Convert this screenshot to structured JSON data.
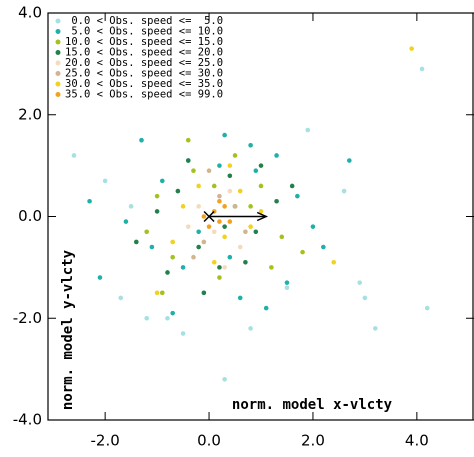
{
  "chart_data": {
    "type": "scatter",
    "x_label": "norm. model x-vlcty",
    "y_label": "norm. model y-vlcty",
    "xlim": [
      -3.1,
      5.1
    ],
    "ylim": [
      -4,
      4
    ],
    "xticks": [
      {
        "value": -2,
        "label": "-2.0"
      },
      {
        "value": 0,
        "label": "0.0"
      },
      {
        "value": 2,
        "label": "2.0"
      },
      {
        "value": 4,
        "label": "4.0"
      }
    ],
    "yticks": [
      {
        "value": -4,
        "label": "-4.0"
      },
      {
        "value": -2,
        "label": "-2.0"
      },
      {
        "value": 0,
        "label": "0.0"
      },
      {
        "value": 2,
        "label": "2.0"
      },
      {
        "value": 4,
        "label": "4.0"
      }
    ],
    "grid": false,
    "legend_position": "upper left",
    "arrow": {
      "x": 1.1,
      "y": 0
    },
    "series": [
      {
        "name": " 0.0 < Obs. speed <=  5.0",
        "color": "#a6e0e0",
        "x": [
          -2.6,
          4.1,
          -1.7,
          -0.8,
          2.6,
          3.2,
          4.2,
          -1.2,
          0.8,
          1.5,
          -2.0,
          0.3,
          3.0,
          -0.5,
          1.9,
          2.9,
          -1.5
        ],
        "y": [
          1.2,
          2.9,
          -1.6,
          -2.0,
          0.5,
          -2.2,
          -1.8,
          -2.0,
          -2.2,
          -1.4,
          0.7,
          -3.2,
          -1.6,
          -2.3,
          1.7,
          -1.3,
          0.2
        ]
      },
      {
        "name": " 5.0 < Obs. speed <= 10.0",
        "color": "#1fb0aa",
        "x": [
          -2.3,
          -2.1,
          -1.3,
          -0.9,
          -0.4,
          0.3,
          0.8,
          1.3,
          1.7,
          2.2,
          -0.5,
          0.6,
          1.1,
          -1.1,
          0.9,
          -0.2,
          1.5,
          2.0,
          -0.7,
          0.2,
          -1.6,
          2.7,
          0.4
        ],
        "y": [
          0.3,
          -1.2,
          1.5,
          0.7,
          1.1,
          1.6,
          1.4,
          1.2,
          0.4,
          -0.6,
          -1.0,
          -1.6,
          -1.8,
          -0.6,
          0.9,
          -0.3,
          -1.3,
          -0.2,
          -1.9,
          1.0,
          -0.1,
          1.1,
          -0.8
        ]
      },
      {
        "name": "10.0 < Obs. speed <= 15.0",
        "color": "#a2c21e",
        "x": [
          -1.0,
          -0.3,
          0.5,
          1.0,
          1.4,
          -0.7,
          0.2,
          -0.9,
          0.8,
          1.8,
          -0.4,
          0.1,
          1.2,
          -1.2
        ],
        "y": [
          0.4,
          0.9,
          1.2,
          0.6,
          -0.4,
          -0.8,
          -1.2,
          -1.5,
          0.2,
          -0.7,
          1.5,
          0.6,
          -1.0,
          -0.3
        ]
      },
      {
        "name": "15.0 < Obs. speed <= 20.0",
        "color": "#22804a",
        "x": [
          -0.6,
          0.4,
          0.9,
          -0.2,
          0.7,
          -1.0,
          1.3,
          -0.4,
          0.2,
          1.0,
          -0.8,
          0.5,
          -0.1,
          1.6,
          -1.4,
          0.3
        ],
        "y": [
          0.5,
          0.8,
          -0.3,
          -0.6,
          -0.9,
          0.1,
          0.3,
          1.1,
          -1.0,
          1.0,
          -1.1,
          0.2,
          -1.5,
          0.6,
          -0.5,
          -0.2
        ]
      },
      {
        "name": "20.0 < Obs. speed <= 25.0",
        "color": "#f2dcbc",
        "x": [
          0.1,
          -0.2,
          0.4,
          0.6,
          -0.4,
          0.3
        ],
        "y": [
          -0.3,
          0.2,
          0.5,
          -0.6,
          -0.2,
          -1.0
        ]
      },
      {
        "name": "25.0 < Obs. speed <= 30.0",
        "color": "#d2b48e",
        "x": [
          -0.1,
          0.5,
          0.2,
          -0.3,
          0.7,
          0.0
        ],
        "y": [
          -0.5,
          0.2,
          0.4,
          -0.8,
          -0.3,
          0.9
        ]
      },
      {
        "name": "30.0 < Obs. speed <= 35.0",
        "color": "#f2d21e",
        "x": [
          -0.5,
          0.3,
          0.6,
          -0.2,
          0.8,
          0.1,
          1.0,
          -0.7,
          0.4,
          -1.0,
          2.4,
          3.9
        ],
        "y": [
          0.2,
          -0.4,
          0.5,
          0.6,
          -0.2,
          -0.9,
          0.1,
          -0.5,
          1.0,
          -1.5,
          -0.9,
          3.3
        ]
      },
      {
        "name": "35.0 < Obs. speed <= 99.0",
        "color": "#f2a21e",
        "x": [
          0.1,
          0.2,
          0.0,
          0.3,
          -0.1,
          0.2,
          0.4
        ],
        "y": [
          0.1,
          -0.1,
          -0.2,
          0.2,
          0.0,
          0.3,
          -0.1
        ]
      }
    ]
  }
}
